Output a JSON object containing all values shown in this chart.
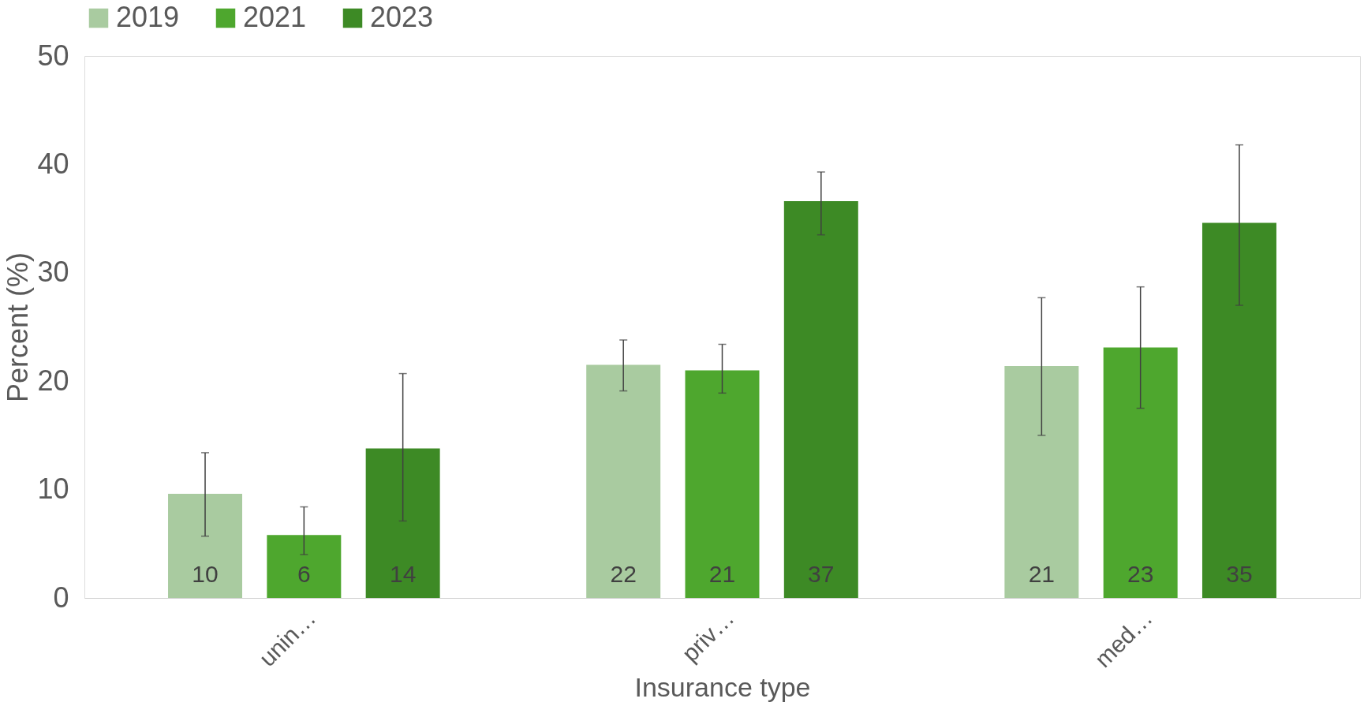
{
  "chart_data": {
    "type": "bar",
    "xlabel": "Insurance type",
    "ylabel": "Percent (%)",
    "categories": [
      "unin…",
      "priv…",
      "med…"
    ],
    "series": [
      {
        "name": "2019",
        "color": "#a9cba0",
        "values": [
          9.6,
          21.5,
          21.4
        ],
        "errors": [
          [
            5.7,
            13.4
          ],
          [
            19.1,
            23.8
          ],
          [
            15.0,
            27.7
          ]
        ],
        "value_labels": [
          "10",
          "22",
          "21"
        ]
      },
      {
        "name": "2021",
        "color": "#4ea72e",
        "values": [
          5.8,
          21.0,
          23.1
        ],
        "errors": [
          [
            4.0,
            8.4
          ],
          [
            18.9,
            23.4
          ],
          [
            17.5,
            28.7
          ]
        ],
        "value_labels": [
          "6",
          "21",
          "23"
        ]
      },
      {
        "name": "2023",
        "color": "#3d8a25",
        "values": [
          13.8,
          36.6,
          34.6
        ],
        "errors": [
          [
            7.1,
            20.7
          ],
          [
            33.5,
            39.3
          ],
          [
            27.0,
            41.8
          ]
        ],
        "value_labels": [
          "14",
          "37",
          "35"
        ]
      }
    ],
    "ylim": [
      0,
      50
    ],
    "yticks": [
      0,
      10,
      20,
      30,
      40,
      50
    ],
    "grid": false,
    "legend": "top left"
  }
}
